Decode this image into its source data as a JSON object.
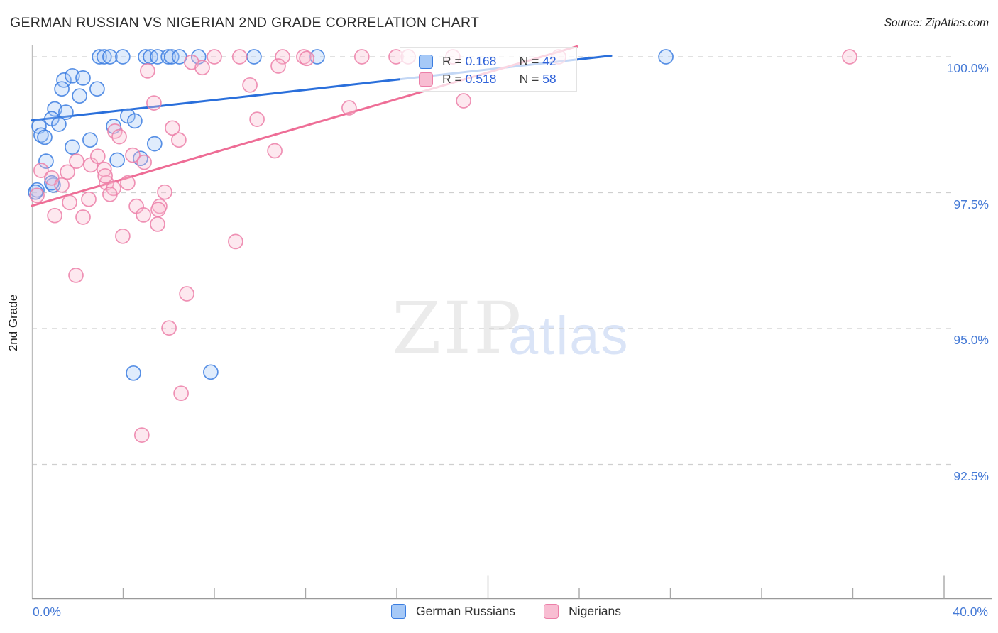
{
  "header": {
    "title": "GERMAN RUSSIAN VS NIGERIAN 2ND GRADE CORRELATION CHART",
    "source": "Source: ZipAtlas.com"
  },
  "watermark": {
    "zip": "ZIP",
    "atlas": "atlas"
  },
  "y_axis_title": "2nd Grade",
  "axes": {
    "x_left_label": "0.0%",
    "x_right_label": "40.0%",
    "y_ticks": [
      {
        "value": 100.0,
        "label": "100.0%"
      },
      {
        "value": 97.5,
        "label": "97.5%"
      },
      {
        "value": 95.0,
        "label": "95.0%"
      },
      {
        "value": 92.5,
        "label": "92.5%"
      }
    ],
    "x_tick_values": [
      4,
      8,
      12,
      16,
      20,
      24,
      28,
      32,
      36,
      40
    ],
    "x_major_ticks": [
      20,
      40
    ]
  },
  "legend_box": {
    "r_label": "R = ",
    "n_label": "N = "
  },
  "colors": {
    "accent_blue": "#4479d6",
    "grid": "#cfcfcf",
    "blue_stroke": "#3b7de0",
    "blue_fill": "#a6c9f7",
    "blue_trend": "#2a6fdb",
    "pink_stroke": "#ec7fa8",
    "pink_fill": "#f8bdd2",
    "pink_trend": "#ee6d96"
  },
  "chart_data": {
    "type": "scatter",
    "title": "GERMAN RUSSIAN VS NIGERIAN 2ND GRADE CORRELATION CHART",
    "xlabel": "",
    "ylabel": "2nd Grade",
    "xlim": [
      0,
      40
    ],
    "ylim": [
      90,
      100.2
    ],
    "grid": true,
    "legend_position": "top-center-box and bottom-center",
    "series": [
      {
        "name": "German Russians",
        "R": 0.168,
        "N": 42,
        "stroke": "#3b7de0",
        "fill": "#a6c9f7",
        "trend": {
          "x1": 0,
          "y1": 98.83,
          "x2": 25.4,
          "y2": 100.02
        },
        "points": [
          [
            2.96,
            100
          ],
          [
            3.17,
            100
          ],
          [
            3.42,
            100
          ],
          [
            3.98,
            100
          ],
          [
            4.98,
            100
          ],
          [
            5.2,
            100
          ],
          [
            5.51,
            100
          ],
          [
            5.98,
            100
          ],
          [
            6.13,
            100
          ],
          [
            6.47,
            100
          ],
          [
            7.31,
            100
          ],
          [
            9.74,
            100
          ],
          [
            12.51,
            100
          ],
          [
            27.8,
            100
          ],
          [
            1.4,
            99.57
          ],
          [
            1.77,
            99.65
          ],
          [
            2.24,
            99.61
          ],
          [
            1.31,
            99.41
          ],
          [
            2.86,
            99.41
          ],
          [
            2.09,
            99.28
          ],
          [
            1.0,
            99.04
          ],
          [
            1.49,
            98.98
          ],
          [
            0.87,
            98.86
          ],
          [
            1.18,
            98.76
          ],
          [
            0.31,
            98.72
          ],
          [
            0.4,
            98.56
          ],
          [
            0.56,
            98.52
          ],
          [
            4.2,
            98.91
          ],
          [
            4.51,
            98.82
          ],
          [
            3.58,
            98.72
          ],
          [
            1.77,
            98.34
          ],
          [
            2.55,
            98.47
          ],
          [
            5.38,
            98.4
          ],
          [
            3.74,
            98.1
          ],
          [
            4.76,
            98.13
          ],
          [
            0.62,
            98.08
          ],
          [
            0.93,
            97.64
          ],
          [
            0.22,
            97.55
          ],
          [
            0.87,
            97.68
          ],
          [
            0.16,
            97.51
          ],
          [
            4.45,
            94.18
          ],
          [
            7.84,
            94.2
          ]
        ]
      },
      {
        "name": "Nigerians",
        "R": 0.518,
        "N": 58,
        "stroke": "#ec7fa8",
        "fill": "#f8bdd2",
        "trend": {
          "x1": 0,
          "y1": 97.26,
          "x2": 23.9,
          "y2": 100.19
        },
        "points": [
          [
            7.0,
            99.9
          ],
          [
            7.47,
            99.8
          ],
          [
            8.0,
            100
          ],
          [
            9.11,
            100
          ],
          [
            10.99,
            100
          ],
          [
            10.8,
            99.83
          ],
          [
            11.92,
            100
          ],
          [
            12.05,
            99.97
          ],
          [
            14.47,
            100
          ],
          [
            15.97,
            100
          ],
          [
            16.5,
            100
          ],
          [
            18.46,
            100
          ],
          [
            23.1,
            100
          ],
          [
            35.86,
            100
          ],
          [
            5.07,
            99.74
          ],
          [
            9.56,
            99.48
          ],
          [
            5.35,
            99.15
          ],
          [
            13.91,
            99.06
          ],
          [
            18.93,
            99.19
          ],
          [
            6.16,
            98.69
          ],
          [
            6.44,
            98.47
          ],
          [
            9.87,
            98.85
          ],
          [
            3.64,
            98.63
          ],
          [
            3.83,
            98.53
          ],
          [
            1.56,
            97.88
          ],
          [
            2.58,
            98.01
          ],
          [
            2.89,
            98.17
          ],
          [
            3.17,
            97.93
          ],
          [
            3.27,
            97.68
          ],
          [
            4.2,
            97.68
          ],
          [
            4.42,
            98.19
          ],
          [
            4.92,
            98.06
          ],
          [
            0.4,
            97.91
          ],
          [
            1.96,
            98.08
          ],
          [
            0.87,
            97.77
          ],
          [
            1.31,
            97.64
          ],
          [
            0.22,
            97.45
          ],
          [
            3.21,
            97.81
          ],
          [
            3.58,
            97.58
          ],
          [
            1.65,
            97.32
          ],
          [
            2.49,
            97.38
          ],
          [
            1.0,
            97.08
          ],
          [
            2.24,
            97.05
          ],
          [
            3.42,
            97.47
          ],
          [
            5.82,
            97.51
          ],
          [
            5.6,
            97.25
          ],
          [
            10.65,
            98.27
          ],
          [
            4.58,
            97.25
          ],
          [
            4.89,
            97.09
          ],
          [
            5.54,
            97.19
          ],
          [
            5.51,
            96.92
          ],
          [
            3.98,
            96.7
          ],
          [
            8.93,
            96.6
          ],
          [
            1.93,
            95.98
          ],
          [
            6.79,
            95.64
          ],
          [
            6.01,
            95.01
          ],
          [
            6.54,
            93.81
          ],
          [
            4.82,
            93.04
          ]
        ]
      }
    ]
  }
}
